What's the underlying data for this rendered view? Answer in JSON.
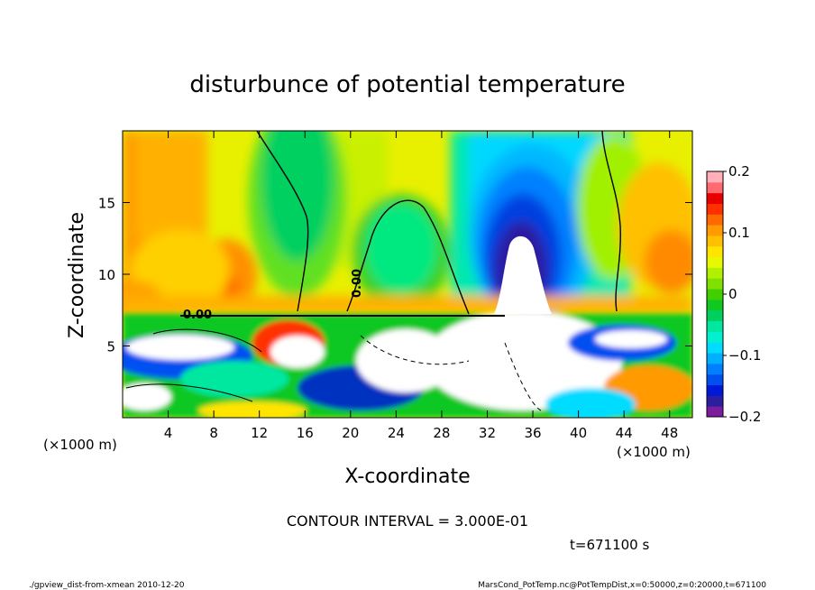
{
  "chart_data": {
    "type": "heatmap",
    "title": "disturbunce of potential temperature",
    "xlabel": "X-coordinate",
    "ylabel": "Z-coordinate",
    "x_unit": "(×1000 m)",
    "xlim": [
      0,
      50
    ],
    "ylim": [
      0,
      20
    ],
    "x_ticks": [
      4,
      8,
      12,
      16,
      20,
      24,
      28,
      32,
      36,
      40,
      44,
      48
    ],
    "y_ticks": [
      5,
      10,
      15
    ],
    "colorbar": {
      "range": [
        -0.2,
        0.2
      ],
      "tick_labels": [
        "0.2",
        "0.1",
        "0",
        "−0.1",
        "−0.2"
      ],
      "tick_values": [
        0.2,
        0.1,
        0,
        -0.1,
        -0.2
      ],
      "colors": [
        "#7d1c9e",
        "#2a1fa0",
        "#0018d8",
        "#0050f0",
        "#0080ff",
        "#00b0ff",
        "#00dcff",
        "#00f0d0",
        "#00e8a0",
        "#00d060",
        "#10c820",
        "#40d000",
        "#80e000",
        "#b0f000",
        "#e8f800",
        "#ffe400",
        "#ffc000",
        "#ff9a00",
        "#ff6a00",
        "#ff3000",
        "#e80000",
        "#ff6a70",
        "#ffb0b8"
      ]
    },
    "contour_label": "0.00",
    "contour_interval_text": "CONTOUR INTERVAL = 3.000E-01",
    "time_text": "t=671100 s"
  },
  "footer": {
    "left": "./gpview_dist-from-xmean  2010-12-20",
    "right": "MarsCond_PotTemp.nc@PotTempDist,x=0:50000,z=0:20000,t=671100"
  }
}
